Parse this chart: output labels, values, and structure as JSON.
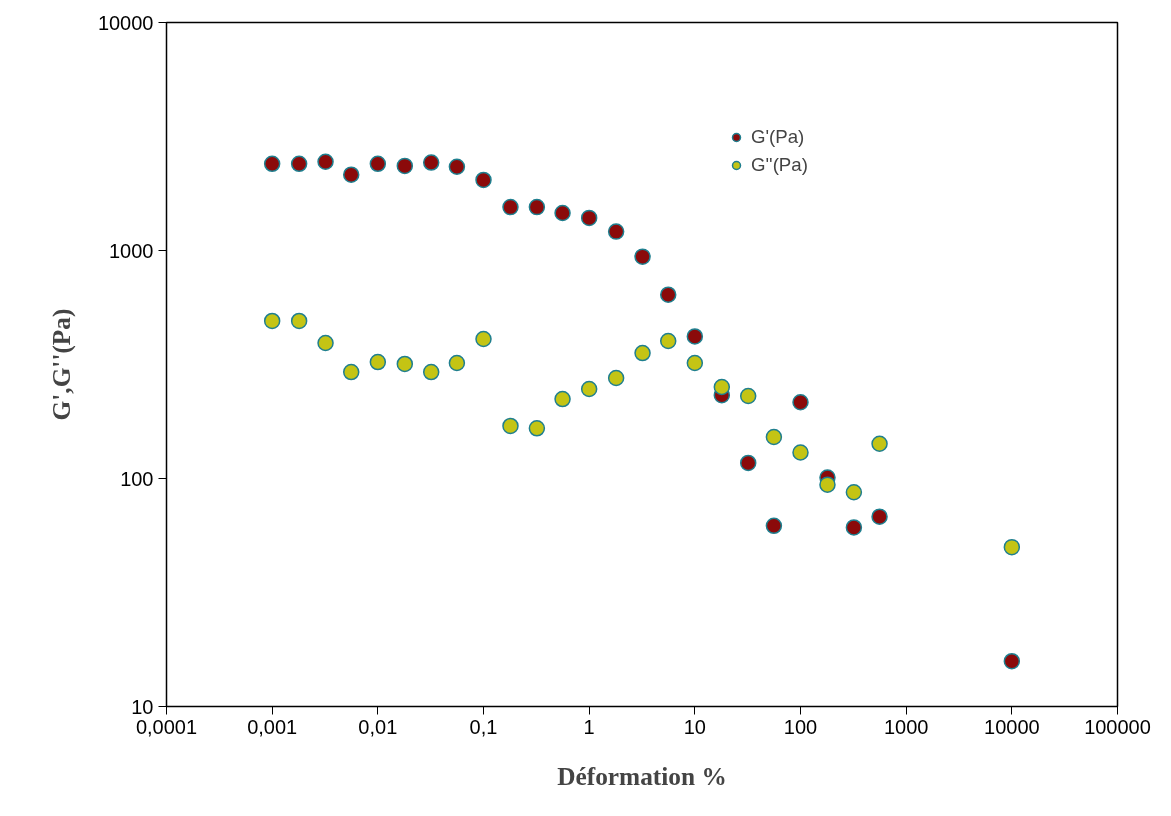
{
  "chart_data": {
    "type": "scatter",
    "xlabel": "Déformation %",
    "ylabel": "G',G''(Pa)",
    "log": "xy",
    "grid": false,
    "legend": "top",
    "marker": "circle",
    "x": [
      0.001,
      0.0018,
      0.0032,
      0.0056,
      0.01,
      0.018,
      0.032,
      0.056,
      0.1,
      0.18,
      0.32,
      0.56,
      1,
      1.8,
      3.2,
      5.6,
      10,
      18,
      32,
      56,
      100,
      180,
      320,
      560,
      10000
    ],
    "series": [
      {
        "name": "G'(Pa)",
        "color": "#8b0a0a",
        "values": [
          2400,
          2400,
          2450,
          2150,
          2400,
          2350,
          2430,
          2330,
          2040,
          1550,
          1550,
          1460,
          1390,
          1210,
          940,
          640,
          420,
          232,
          117,
          62,
          216,
          101,
          61,
          68,
          15.8
        ]
      },
      {
        "name": "G''(Pa)",
        "color": "#c4c414",
        "values": [
          491,
          491,
          393,
          293,
          324,
          318,
          293,
          321,
          409,
          170,
          166,
          223,
          247,
          276,
          355,
          401,
          321,
          252,
          230,
          152,
          130,
          94,
          87,
          142,
          50
        ]
      }
    ],
    "xlim": [
      0.0001,
      100000
    ],
    "ylim": [
      10,
      10000
    ],
    "xticks": [
      {
        "value": 0.0001,
        "label": "0,0001"
      },
      {
        "value": 0.001,
        "label": "0,001"
      },
      {
        "value": 0.01,
        "label": "0,01"
      },
      {
        "value": 0.1,
        "label": "0,1"
      },
      1,
      10,
      100,
      1000,
      10000,
      100000
    ],
    "yticks": [
      10,
      100,
      1000,
      10000
    ]
  }
}
